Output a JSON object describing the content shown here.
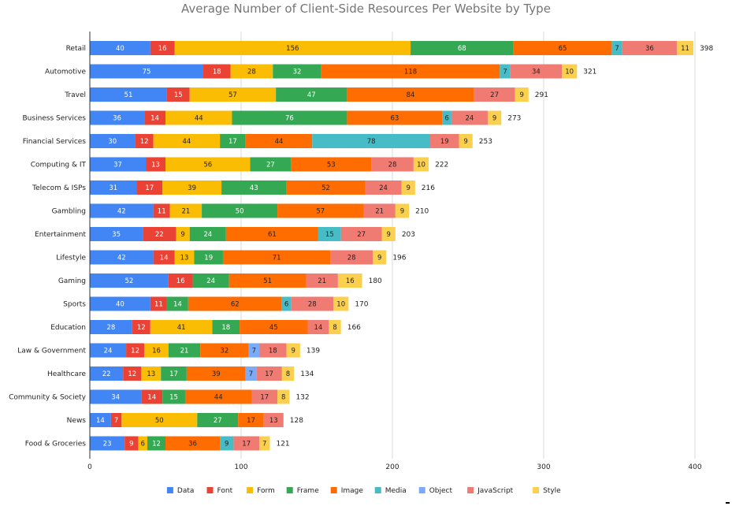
{
  "chart_data": {
    "type": "bar",
    "orientation": "horizontal",
    "stacked": true,
    "title": "Average Number of Client-Side Resources Per Website by Type",
    "xlabel": "",
    "ylabel": "",
    "xlim": [
      0,
      400
    ],
    "xticks": [
      0,
      100,
      200,
      300,
      400
    ],
    "grid": true,
    "legend_position": "bottom",
    "categories": [
      "Retail",
      "Automotive",
      "Travel",
      "Business Services",
      "Financial Services",
      "Computing & IT",
      "Telecom & ISPs",
      "Gambling",
      "Entertainment",
      "Lifestyle",
      "Gaming",
      "Sports",
      "Education",
      "Law & Government",
      "Healthcare",
      "Community & Society",
      "News",
      "Food & Groceries"
    ],
    "series": [
      {
        "name": "Data",
        "color": "#4285f4",
        "label_color": "#ffffff",
        "values": [
          40,
          75,
          51,
          36,
          30,
          37,
          31,
          42,
          35,
          42,
          52,
          40,
          28,
          24,
          22,
          34,
          14,
          23
        ]
      },
      {
        "name": "Font",
        "color": "#ea4335",
        "label_color": "#ffffff",
        "values": [
          16,
          18,
          15,
          14,
          12,
          13,
          17,
          11,
          22,
          14,
          16,
          11,
          12,
          12,
          12,
          14,
          7,
          9
        ]
      },
      {
        "name": "Form",
        "color": "#fbbc04",
        "label_color": "#222222",
        "values": [
          156,
          28,
          57,
          44,
          44,
          56,
          39,
          21,
          9,
          13,
          0,
          0,
          41,
          16,
          13,
          0,
          50,
          6
        ]
      },
      {
        "name": "Frame",
        "color": "#34a853",
        "label_color": "#ffffff",
        "values": [
          68,
          32,
          47,
          76,
          17,
          27,
          43,
          50,
          24,
          19,
          24,
          14,
          18,
          21,
          17,
          15,
          27,
          12
        ]
      },
      {
        "name": "Image",
        "color": "#ff6d01",
        "label_color": "#222222",
        "values": [
          65,
          118,
          84,
          63,
          44,
          53,
          52,
          57,
          61,
          71,
          51,
          62,
          45,
          32,
          39,
          44,
          17,
          36
        ]
      },
      {
        "name": "Media",
        "color": "#46bdc6",
        "label_color": "#222222",
        "values": [
          7,
          7,
          0,
          6,
          78,
          0,
          0,
          0,
          15,
          0,
          0,
          6,
          0,
          0,
          0,
          0,
          0,
          9
        ]
      },
      {
        "name": "Object",
        "color": "#7baaf7",
        "label_color": "#222222",
        "values": [
          0,
          0,
          0,
          0,
          0,
          0,
          0,
          0,
          0,
          0,
          0,
          0,
          0,
          7,
          7,
          0,
          0,
          0
        ]
      },
      {
        "name": "JavaScript",
        "color": "#f07b72",
        "label_color": "#222222",
        "values": [
          36,
          34,
          27,
          24,
          19,
          28,
          24,
          21,
          27,
          28,
          21,
          28,
          14,
          18,
          17,
          17,
          13,
          17
        ]
      },
      {
        "name": "Style",
        "color": "#fcd04f",
        "label_color": "#222222",
        "values": [
          11,
          10,
          9,
          9,
          9,
          10,
          9,
          9,
          9,
          9,
          16,
          10,
          8,
          9,
          8,
          8,
          0,
          7
        ]
      }
    ],
    "totals": [
      398,
      321,
      291,
      273,
      253,
      222,
      216,
      210,
      203,
      196,
      180,
      170,
      166,
      139,
      134,
      132,
      128,
      121
    ]
  }
}
